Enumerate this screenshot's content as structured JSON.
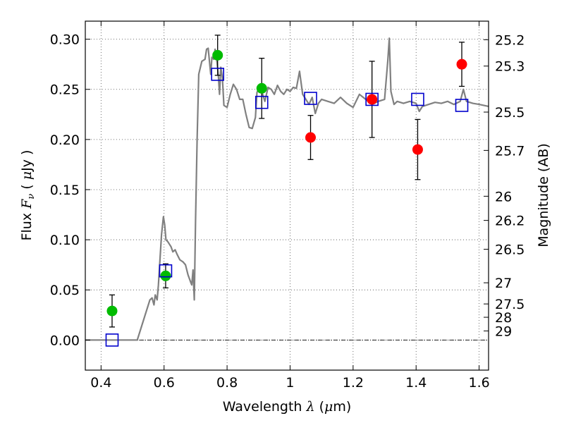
{
  "chart_data": {
    "type": "scatter",
    "xlabel": "Wavelength",
    "xlabel_math": "λ",
    "xlabel_unit_open": " (",
    "xlabel_unit_math": "μ",
    "xlabel_unit_rest": "m)",
    "ylabel": "Flux",
    "ylabel_math": "F",
    "ylabel_math_sub": "ν",
    "ylabel_unit_open": "  ( ",
    "ylabel_unit_math": "μ",
    "ylabel_unit_rest": "Jy )",
    "y2label": "Magnitude (AB)",
    "xlim": [
      0.35,
      1.63
    ],
    "ylim": [
      -0.03,
      0.318
    ],
    "grid": true,
    "x_ticks": [
      0.4,
      0.6,
      0.8,
      1.0,
      1.2,
      1.4,
      1.6
    ],
    "x_tick_labels": [
      "0.4",
      "0.6",
      "0.8",
      "1",
      "1.2",
      "1.4",
      "1.6"
    ],
    "y_ticks": [
      0.0,
      0.05,
      0.1,
      0.15,
      0.2,
      0.25,
      0.3
    ],
    "y_tick_labels": [
      "0.00",
      "0.05",
      "0.10",
      "0.15",
      "0.20",
      "0.25",
      "0.30"
    ],
    "magnitude_ticks": [
      {
        "label": "25.2",
        "flux": 0.2995
      },
      {
        "label": "25.3",
        "flux": 0.2732
      },
      {
        "label": "25.5",
        "flux": 0.2273
      },
      {
        "label": "25.7",
        "flux": 0.1891
      },
      {
        "label": "26",
        "flux": 0.1434
      },
      {
        "label": "26.2",
        "flux": 0.1193
      },
      {
        "label": "26.5",
        "flux": 0.0905
      },
      {
        "label": "27",
        "flux": 0.0571
      },
      {
        "label": "27.5",
        "flux": 0.036
      },
      {
        "label": "28",
        "flux": 0.0227
      },
      {
        "label": "29",
        "flux": 0.0091
      }
    ],
    "series": [
      {
        "kind": "line",
        "color": "#808080",
        "x": [
          0.35,
          0.4,
          0.45,
          0.5,
          0.515,
          0.53,
          0.545,
          0.555,
          0.562,
          0.568,
          0.572,
          0.578,
          0.582,
          0.587,
          0.592,
          0.598,
          0.602,
          0.606,
          0.612,
          0.618,
          0.622,
          0.628,
          0.635,
          0.642,
          0.65,
          0.66,
          0.668,
          0.676,
          0.684,
          0.688,
          0.692,
          0.696,
          0.7,
          0.705,
          0.71,
          0.72,
          0.73,
          0.735,
          0.74,
          0.748,
          0.752,
          0.758,
          0.762,
          0.768,
          0.772,
          0.776,
          0.78,
          0.785,
          0.79,
          0.8,
          0.81,
          0.82,
          0.83,
          0.84,
          0.85,
          0.86,
          0.87,
          0.88,
          0.89,
          0.895,
          0.9,
          0.91,
          0.92,
          0.93,
          0.94,
          0.95,
          0.96,
          0.97,
          0.98,
          0.99,
          1.0,
          1.01,
          1.02,
          1.03,
          1.04,
          1.05,
          1.06,
          1.07,
          1.08,
          1.09,
          1.1,
          1.12,
          1.14,
          1.16,
          1.18,
          1.2,
          1.22,
          1.24,
          1.26,
          1.28,
          1.3,
          1.31,
          1.315,
          1.32,
          1.33,
          1.34,
          1.36,
          1.38,
          1.4,
          1.41,
          1.42,
          1.44,
          1.46,
          1.48,
          1.5,
          1.52,
          1.54,
          1.55,
          1.56,
          1.58,
          1.6,
          1.63
        ],
        "y": [
          0.0,
          0.0,
          0.0,
          0.0,
          0.0,
          0.015,
          0.03,
          0.04,
          0.042,
          0.035,
          0.045,
          0.04,
          0.055,
          0.08,
          0.105,
          0.123,
          0.115,
          0.1,
          0.098,
          0.095,
          0.093,
          0.088,
          0.09,
          0.085,
          0.08,
          0.078,
          0.075,
          0.065,
          0.058,
          0.055,
          0.07,
          0.04,
          0.12,
          0.2,
          0.265,
          0.278,
          0.28,
          0.29,
          0.291,
          0.265,
          0.282,
          0.28,
          0.29,
          0.277,
          0.265,
          0.245,
          0.272,
          0.262,
          0.234,
          0.232,
          0.245,
          0.255,
          0.25,
          0.24,
          0.24,
          0.225,
          0.212,
          0.211,
          0.222,
          0.247,
          0.25,
          0.248,
          0.238,
          0.252,
          0.25,
          0.245,
          0.254,
          0.248,
          0.245,
          0.25,
          0.248,
          0.252,
          0.251,
          0.268,
          0.245,
          0.24,
          0.235,
          0.242,
          0.226,
          0.236,
          0.24,
          0.238,
          0.236,
          0.242,
          0.236,
          0.232,
          0.245,
          0.24,
          0.235,
          0.238,
          0.24,
          0.278,
          0.301,
          0.248,
          0.235,
          0.238,
          0.236,
          0.238,
          0.236,
          0.228,
          0.233,
          0.235,
          0.237,
          0.236,
          0.238,
          0.235,
          0.238,
          0.25,
          0.238,
          0.236,
          0.235,
          0.233
        ]
      },
      {
        "kind": "points",
        "marker": "circle",
        "color": "#00bb00",
        "x": [
          0.435,
          0.605,
          0.77,
          0.91
        ],
        "y": [
          0.029,
          0.064,
          0.284,
          0.251
        ],
        "yerr": [
          0.016,
          0.012,
          0.02,
          0.03
        ]
      },
      {
        "kind": "points",
        "marker": "circle",
        "color": "#ff0000",
        "x": [
          1.065,
          1.26,
          1.405,
          1.545
        ],
        "y": [
          0.202,
          0.24,
          0.19,
          0.275
        ],
        "yerr": [
          0.022,
          0.038,
          0.03,
          0.022
        ]
      },
      {
        "kind": "points",
        "marker": "open-square",
        "color": "#0000cc",
        "x": [
          0.435,
          0.605,
          0.77,
          0.91,
          1.065,
          1.26,
          1.405,
          1.545
        ],
        "y": [
          0.0,
          0.069,
          0.265,
          0.237,
          0.241,
          0.24,
          0.24,
          0.234
        ]
      }
    ]
  }
}
